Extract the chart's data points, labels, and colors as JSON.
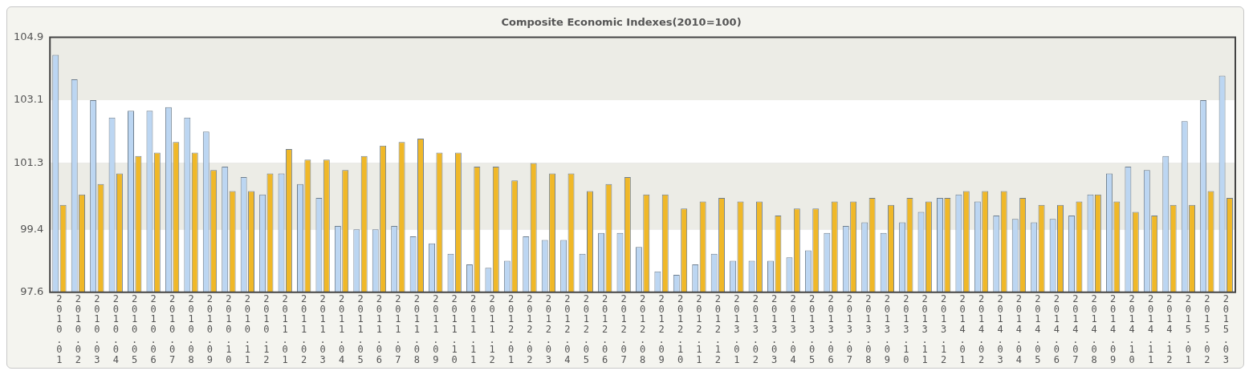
{
  "chart_data": {
    "type": "bar",
    "title": "Composite Economic Indexes(2010=100)",
    "categories": [
      "2010.01",
      "2010.02",
      "2010.03",
      "2010.04",
      "2010.05",
      "2010.06",
      "2010.07",
      "2010.08",
      "2010.09",
      "2010.10",
      "2010.11",
      "2010.12",
      "2011.01",
      "2011.02",
      "2011.03",
      "2011.04",
      "2011.05",
      "2011.06",
      "2011.07",
      "2011.08",
      "2011.09",
      "2011.10",
      "2011.11",
      "2011.12",
      "2012.01",
      "2012.02",
      "2012.03",
      "2012.04",
      "2012.05",
      "2012.06",
      "2012.07",
      "2012.08",
      "2012.09",
      "2012.10",
      "2012.11",
      "2012.12",
      "2013.01",
      "2013.02",
      "2013.03",
      "2013.04",
      "2013.05",
      "2013.06",
      "2013.07",
      "2013.08",
      "2013.09",
      "2013.10",
      "2013.11",
      "2013.12",
      "2014.01",
      "2014.02",
      "2014.03",
      "2014.04",
      "2014.05",
      "2014.06",
      "2014.07",
      "2014.08",
      "2014.09",
      "2014.10",
      "2014.11",
      "2014.12",
      "2015.01",
      "2015.02",
      "2015.03"
    ],
    "series": [
      {
        "color": "#bcd6f2",
        "values": [
          104.4,
          103.7,
          103.1,
          102.6,
          102.8,
          102.8,
          102.9,
          102.6,
          102.2,
          101.2,
          100.9,
          100.4,
          101.0,
          100.7,
          100.3,
          99.5,
          99.4,
          99.4,
          99.5,
          99.2,
          99.0,
          98.7,
          98.4,
          98.3,
          98.5,
          99.2,
          99.1,
          99.1,
          98.7,
          99.3,
          99.3,
          98.9,
          98.2,
          98.1,
          98.4,
          98.7,
          98.5,
          98.5,
          98.5,
          98.6,
          98.8,
          99.3,
          99.5,
          99.6,
          99.3,
          99.6,
          99.9,
          100.3,
          100.4,
          100.2,
          99.8,
          99.7,
          99.6,
          99.7,
          99.8,
          100.4,
          101.0,
          101.2,
          101.1,
          101.5,
          102.5,
          103.1,
          103.8
        ]
      },
      {
        "color": "#f0b828",
        "values": [
          100.1,
          100.4,
          100.7,
          101.0,
          101.5,
          101.6,
          101.9,
          101.6,
          101.1,
          100.5,
          100.5,
          101.0,
          101.7,
          101.4,
          101.4,
          101.1,
          101.5,
          101.8,
          101.9,
          102.0,
          101.6,
          101.6,
          101.2,
          101.2,
          100.8,
          101.3,
          101.0,
          101.0,
          100.5,
          100.7,
          100.9,
          100.4,
          100.4,
          100.0,
          100.2,
          100.3,
          100.2,
          100.2,
          99.8,
          100.0,
          100.0,
          100.2,
          100.2,
          100.3,
          100.1,
          100.3,
          100.2,
          100.3,
          100.5,
          100.5,
          100.5,
          100.3,
          100.1,
          100.1,
          100.2,
          100.4,
          100.2,
          99.9,
          99.8,
          100.1,
          100.1,
          100.5,
          100.3
        ]
      }
    ],
    "ylim": [
      97.6,
      104.9
    ],
    "yticks": [
      97.6,
      99.4,
      101.3,
      103.1,
      104.9
    ],
    "grid": "y"
  }
}
